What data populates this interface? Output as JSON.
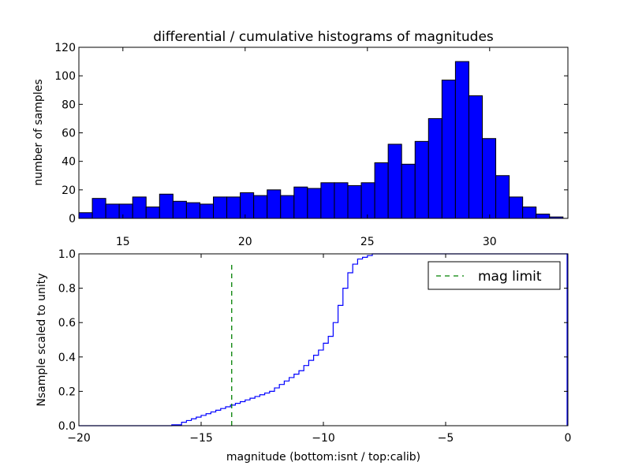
{
  "chart_data": [
    {
      "type": "bar",
      "title": "differential / cumulative histograms of magnitudes",
      "xlabel": "",
      "ylabel": "number of samples",
      "xlim": [
        13.2,
        33.2
      ],
      "ylim": [
        0,
        120
      ],
      "xticks": [
        "15",
        "20",
        "25",
        "30"
      ],
      "yticks": [
        "0",
        "20",
        "40",
        "60",
        "80",
        "100",
        "120"
      ],
      "bar_color": "#0000ff",
      "bin_edges": [
        13.2,
        13.75,
        14.3,
        14.85,
        15.4,
        15.95,
        16.5,
        17.05,
        17.6,
        18.15,
        18.7,
        19.25,
        19.8,
        20.35,
        20.9,
        21.45,
        22.0,
        22.55,
        23.1,
        23.65,
        24.2,
        24.75,
        25.3,
        25.85,
        26.4,
        26.95,
        27.5,
        28.05,
        28.6,
        29.15,
        29.7,
        30.25,
        30.8,
        31.35,
        31.9,
        32.45,
        33.0,
        33.2
      ],
      "values": [
        4,
        14,
        10,
        10,
        15,
        8,
        17,
        12,
        11,
        10,
        15,
        15,
        18,
        16,
        20,
        16,
        22,
        21,
        25,
        25,
        23,
        25,
        39,
        52,
        38,
        54,
        70,
        97,
        110,
        86,
        56,
        30,
        15,
        8,
        3,
        1,
        0
      ]
    },
    {
      "type": "line",
      "title": "",
      "xlabel": "magnitude (bottom:isnt / top:calib)",
      "ylabel": "Nsample scaled to unity",
      "xlim": [
        -20,
        0
      ],
      "ylim": [
        0,
        1.0
      ],
      "xticks": [
        "−20",
        "−15",
        "−10",
        "−5",
        "0"
      ],
      "yticks": [
        "0.0",
        "0.2",
        "0.4",
        "0.6",
        "0.8",
        "1.0"
      ],
      "legend_position": "top-right",
      "series": [
        {
          "name": "",
          "style": "steps",
          "color": "#0000ff",
          "x": [
            -20.0,
            -16.2,
            -15.8,
            -15.6,
            -15.4,
            -15.2,
            -15.0,
            -14.8,
            -14.6,
            -14.4,
            -14.2,
            -14.0,
            -13.8,
            -13.6,
            -13.4,
            -13.2,
            -13.0,
            -12.8,
            -12.6,
            -12.4,
            -12.2,
            -12.0,
            -11.8,
            -11.6,
            -11.4,
            -11.2,
            -11.0,
            -10.8,
            -10.6,
            -10.4,
            -10.2,
            -10.0,
            -9.8,
            -9.6,
            -9.4,
            -9.2,
            -9.0,
            -8.8,
            -8.6,
            -8.4,
            -8.2,
            -8.0,
            -7.8,
            -7.6,
            0.0
          ],
          "y": [
            0.0,
            0.005,
            0.02,
            0.03,
            0.04,
            0.05,
            0.06,
            0.07,
            0.08,
            0.09,
            0.1,
            0.11,
            0.12,
            0.13,
            0.14,
            0.15,
            0.16,
            0.17,
            0.18,
            0.19,
            0.2,
            0.22,
            0.24,
            0.26,
            0.28,
            0.3,
            0.32,
            0.35,
            0.38,
            0.41,
            0.44,
            0.48,
            0.52,
            0.6,
            0.7,
            0.8,
            0.89,
            0.94,
            0.97,
            0.98,
            0.99,
            1.0,
            1.0,
            1.0,
            1.0
          ]
        },
        {
          "name": "mag limit",
          "style": "dashed-vertical",
          "color": "#008000",
          "x": [
            -13.75,
            -13.75
          ],
          "y": [
            0,
            0.95
          ]
        }
      ]
    }
  ]
}
